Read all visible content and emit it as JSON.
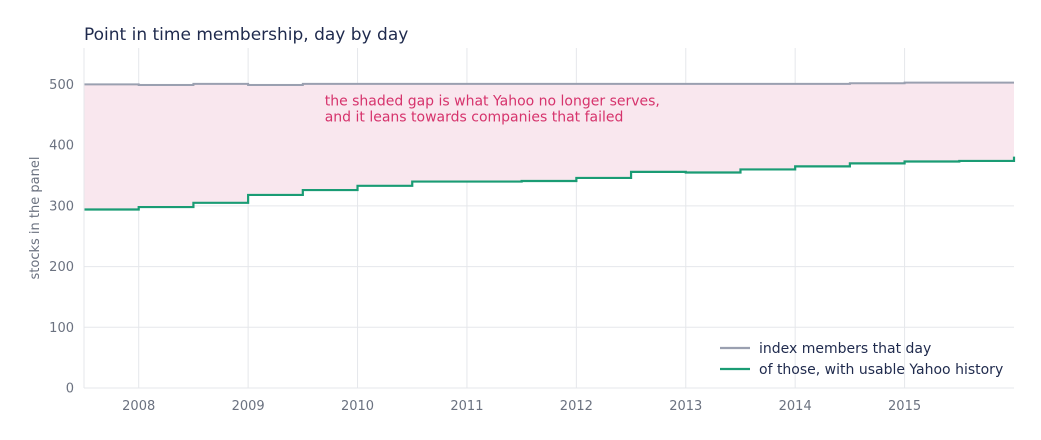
{
  "chart_data": {
    "type": "line",
    "title": "Point in time membership, day by day",
    "xlabel": "",
    "ylabel": "stocks in the panel",
    "xlim": [
      2007.5,
      2016.0
    ],
    "ylim": [
      0,
      560
    ],
    "x_ticks": [
      "2008",
      "2009",
      "2010",
      "2011",
      "2012",
      "2013",
      "2014",
      "2015"
    ],
    "y_ticks": [
      "0",
      "100",
      "200",
      "300",
      "400",
      "500"
    ],
    "grid": true,
    "legend_position": "bottom-right",
    "series": [
      {
        "name": "index members that day",
        "color": "#9aa0b0",
        "step": true,
        "x": [
          2007.5,
          2008.0,
          2008.5,
          2009.0,
          2009.5,
          2010.0,
          2010.5,
          2011.0,
          2011.5,
          2012.0,
          2012.5,
          2013.0,
          2013.5,
          2014.0,
          2014.5,
          2015.0,
          2015.5,
          2016.0
        ],
        "values": [
          500,
          499,
          501,
          499,
          501,
          501,
          501,
          501,
          501,
          501,
          501,
          501,
          501,
          501,
          502,
          503,
          503,
          503
        ]
      },
      {
        "name": "of those, with usable Yahoo history",
        "color": "#1a9c74",
        "step": true,
        "x": [
          2007.5,
          2008.0,
          2008.5,
          2009.0,
          2009.5,
          2010.0,
          2010.5,
          2011.0,
          2011.5,
          2012.0,
          2012.5,
          2013.0,
          2013.5,
          2014.0,
          2014.5,
          2015.0,
          2015.5,
          2016.0
        ],
        "values": [
          294,
          298,
          305,
          318,
          326,
          333,
          340,
          340,
          341,
          346,
          356,
          355,
          360,
          365,
          370,
          373,
          374,
          381
        ]
      }
    ],
    "shaded_gap_color": "#f9e7ee",
    "annotation": {
      "lines": [
        "the shaded gap is what Yahoo no longer serves,",
        "and it leans towards companies that failed"
      ],
      "x": 2009.7,
      "y": 465
    }
  }
}
